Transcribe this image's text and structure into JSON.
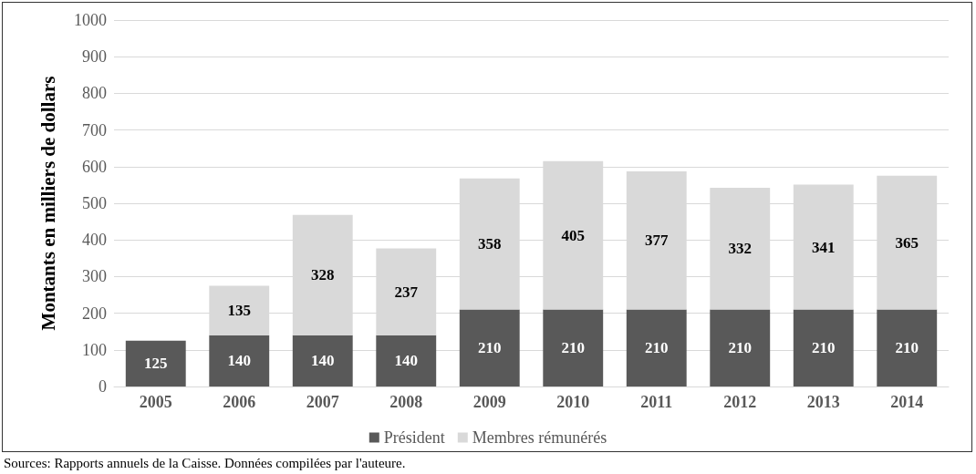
{
  "chart_data": {
    "type": "bar",
    "stacked": true,
    "ylabel": "Montants en milliers de dollars",
    "categories": [
      "2005",
      "2006",
      "2007",
      "2008",
      "2009",
      "2010",
      "2011",
      "2012",
      "2013",
      "2014"
    ],
    "series": [
      {
        "name": "Président",
        "color": "#595959",
        "values": [
          125,
          140,
          140,
          140,
          210,
          210,
          210,
          210,
          210,
          210
        ]
      },
      {
        "name": "Membres rémunérés",
        "color": "#d9d9d9",
        "values": [
          null,
          135,
          328,
          237,
          358,
          405,
          377,
          332,
          341,
          365
        ]
      }
    ],
    "ylim": [
      0,
      1000
    ],
    "yticks": [
      0,
      100,
      200,
      300,
      400,
      500,
      600,
      700,
      800,
      900,
      1000
    ],
    "grid": "y",
    "legend": "bottom",
    "data_labels": true,
    "annotations": [
      "Sources: Rapports annuels de la Caisse. Données compilées par l'auteure."
    ]
  }
}
